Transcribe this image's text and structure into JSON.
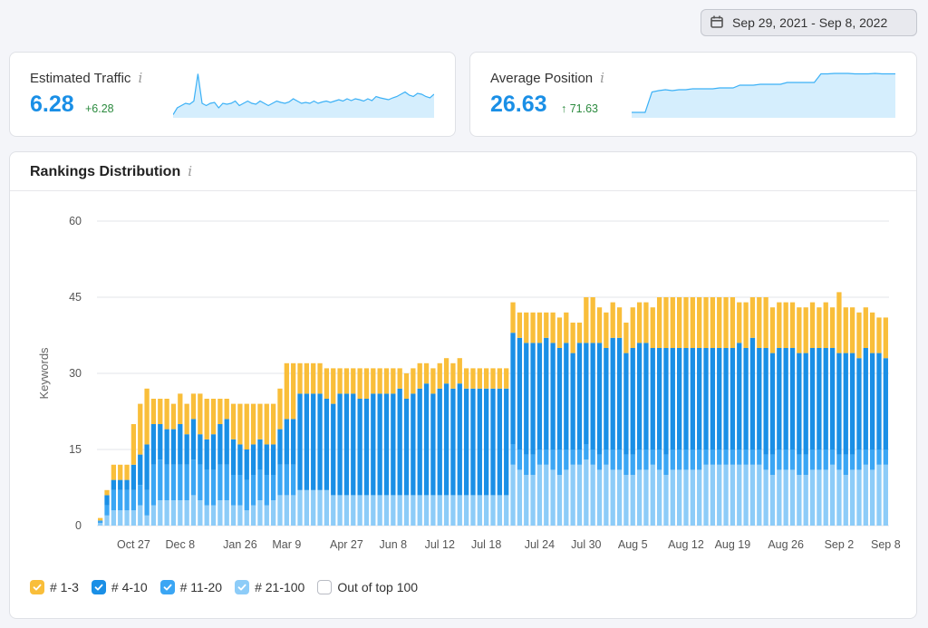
{
  "date_range": {
    "label": "Sep 29, 2021 - Sep 8, 2022",
    "icon": "calendar-icon"
  },
  "kpis": [
    {
      "title": "Estimated Traffic",
      "value": "6.28",
      "delta": "+6.28",
      "spark": [
        0.05,
        0.2,
        0.25,
        0.3,
        0.28,
        0.35,
        0.95,
        0.3,
        0.25,
        0.3,
        0.32,
        0.2,
        0.3,
        0.28,
        0.3,
        0.35,
        0.25,
        0.3,
        0.35,
        0.3,
        0.28,
        0.35,
        0.3,
        0.25,
        0.3,
        0.35,
        0.32,
        0.3,
        0.33,
        0.4,
        0.35,
        0.3,
        0.32,
        0.3,
        0.35,
        0.3,
        0.33,
        0.35,
        0.32,
        0.35,
        0.38,
        0.35,
        0.4,
        0.36,
        0.4,
        0.38,
        0.35,
        0.4,
        0.36,
        0.45,
        0.42,
        0.4,
        0.38,
        0.42,
        0.45,
        0.5,
        0.55,
        0.48,
        0.45,
        0.52,
        0.5,
        0.45,
        0.42,
        0.5
      ]
    },
    {
      "title": "Average Position",
      "value": "26.63",
      "delta": "↑ 71.63",
      "spark": [
        0.1,
        0.1,
        0.1,
        0.55,
        0.58,
        0.6,
        0.58,
        0.6,
        0.6,
        0.62,
        0.62,
        0.62,
        0.62,
        0.64,
        0.64,
        0.64,
        0.7,
        0.7,
        0.7,
        0.72,
        0.72,
        0.72,
        0.72,
        0.76,
        0.76,
        0.76,
        0.76,
        0.76,
        0.95,
        0.95,
        0.96,
        0.96,
        0.96,
        0.95,
        0.95,
        0.95,
        0.96,
        0.95,
        0.95,
        0.95
      ]
    }
  ],
  "rankings": {
    "title": "Rankings Distribution"
  },
  "colors": {
    "top3": "#f9be3a",
    "r4_10": "#1a8fe6",
    "r11_20": "#3ba6f4",
    "r21_100": "#8dccf8",
    "spark_line": "#3cb1f6",
    "spark_fill": "#d5eefd",
    "kpi_value": "#1a8fe6"
  },
  "legend": [
    {
      "label": "# 1-3",
      "color": "#f9be3a",
      "checked": true
    },
    {
      "label": "# 4-10",
      "color": "#1a8fe6",
      "checked": true
    },
    {
      "label": "# 11-20",
      "color": "#3ba6f4",
      "checked": true
    },
    {
      "label": "# 21-100",
      "color": "#8dccf8",
      "checked": true
    },
    {
      "label": "Out of top 100",
      "color": "#ffffff",
      "checked": false
    }
  ],
  "chart_data": {
    "type": "bar",
    "stacked": true,
    "ylabel": "Keywords",
    "ylim": [
      0,
      60
    ],
    "yticks": [
      0,
      15,
      30,
      45,
      60
    ],
    "xtick_labels": [
      "Oct 27",
      "Dec 8",
      "Jan 26",
      "Mar 9",
      "Apr 27",
      "Jun 8",
      "Jul 12",
      "Jul 18",
      "Jul 24",
      "Jul 30",
      "Aug 5",
      "Aug 12",
      "Aug 19",
      "Aug 26",
      "Sep 2",
      "Sep 8"
    ],
    "xtick_bar_index": [
      5,
      12,
      21,
      28,
      37,
      44,
      51,
      58,
      66,
      73,
      80,
      88,
      95,
      103,
      111,
      118
    ],
    "grid": true,
    "legend_position": "bottom-left",
    "series": [
      {
        "name": "# 21-100",
        "values": [
          0.5,
          2,
          3,
          3,
          3,
          3,
          4,
          2,
          4,
          5,
          5,
          5,
          5,
          5,
          6,
          5,
          4,
          4,
          5,
          5,
          4,
          4,
          3,
          4,
          5,
          4,
          5,
          6,
          6,
          6,
          7,
          7,
          7,
          7,
          7,
          6,
          6,
          6,
          6,
          6,
          6,
          6,
          6,
          6,
          6,
          6,
          6,
          6,
          6,
          6,
          6,
          6,
          6,
          6,
          6,
          6,
          6,
          6,
          6,
          6,
          6,
          6,
          12,
          11,
          10,
          10,
          12,
          12,
          11,
          10,
          11,
          12,
          12,
          13,
          12,
          11,
          12,
          11,
          11,
          10,
          10,
          11,
          11,
          12,
          11,
          10,
          11,
          11,
          11,
          11,
          11,
          12,
          12,
          12,
          12,
          12,
          12,
          12,
          12,
          12,
          11,
          10,
          11,
          11,
          11,
          10,
          10,
          11,
          11,
          11,
          12,
          11,
          10,
          11,
          11,
          12,
          11,
          12,
          12
        ]
      },
      {
        "name": "# 11-20",
        "values": [
          0.5,
          2,
          4,
          4,
          4,
          4,
          4,
          5,
          8,
          8,
          7,
          7,
          7,
          7,
          7,
          7,
          7,
          7,
          7,
          7,
          6,
          6,
          6,
          6,
          6,
          6,
          5,
          6,
          6,
          6,
          0,
          0,
          0,
          0,
          0,
          0,
          0,
          0,
          0,
          0,
          0,
          0,
          0,
          0,
          0,
          0,
          0,
          0,
          0,
          0,
          0,
          0,
          0,
          0,
          0,
          0,
          0,
          0,
          0,
          0,
          0,
          0,
          4,
          4,
          4,
          4,
          3,
          3,
          4,
          5,
          4,
          3,
          3,
          3,
          3,
          3,
          3,
          4,
          4,
          4,
          4,
          4,
          4,
          3,
          4,
          4,
          4,
          4,
          4,
          4,
          4,
          3,
          3,
          3,
          3,
          3,
          3,
          3,
          3,
          3,
          3,
          4,
          4,
          4,
          4,
          4,
          4,
          4,
          4,
          4,
          3,
          3,
          4,
          3,
          4,
          3,
          4,
          3,
          3
        ]
      },
      {
        "name": "# 4-10",
        "values": [
          0,
          2,
          2,
          2,
          2,
          5,
          6,
          9,
          8,
          7,
          7,
          7,
          8,
          6,
          8,
          6,
          6,
          7,
          8,
          9,
          7,
          6,
          6,
          6,
          6,
          6,
          6,
          7,
          9,
          9,
          19,
          19,
          19,
          19,
          18,
          18,
          20,
          20,
          20,
          19,
          19,
          20,
          20,
          20,
          20,
          21,
          19,
          20,
          21,
          22,
          20,
          21,
          22,
          21,
          22,
          21,
          21,
          21,
          21,
          21,
          21,
          21,
          22,
          22,
          22,
          22,
          21,
          22,
          21,
          20,
          21,
          19,
          21,
          20,
          21,
          22,
          20,
          22,
          22,
          20,
          21,
          21,
          21,
          20,
          20,
          21,
          20,
          20,
          20,
          20,
          20,
          20,
          20,
          20,
          20,
          20,
          21,
          20,
          22,
          20,
          21,
          20,
          20,
          20,
          20,
          20,
          20,
          20,
          20,
          20,
          20,
          20,
          20,
          20,
          18,
          20,
          19,
          19,
          18
        ]
      },
      {
        "name": "# 1-3",
        "values": [
          0.5,
          1,
          3,
          3,
          3,
          8,
          10,
          11,
          5,
          5,
          6,
          5,
          6,
          6,
          5,
          8,
          8,
          7,
          5,
          4,
          7,
          8,
          9,
          8,
          7,
          8,
          8,
          8,
          11,
          11,
          6,
          6,
          6,
          6,
          6,
          7,
          5,
          5,
          5,
          6,
          6,
          5,
          5,
          5,
          5,
          4,
          5,
          5,
          5,
          4,
          5,
          5,
          5,
          5,
          5,
          4,
          4,
          4,
          4,
          4,
          4,
          4,
          6,
          5,
          6,
          6,
          6,
          5,
          6,
          6,
          6,
          6,
          4,
          9,
          9,
          7,
          7,
          7,
          6,
          6,
          8,
          8,
          8,
          8,
          10,
          10,
          10,
          10,
          10,
          10,
          10,
          10,
          10,
          10,
          10,
          10,
          8,
          9,
          8,
          10,
          10,
          9,
          9,
          9,
          9,
          9,
          9,
          9,
          8,
          9,
          8,
          12,
          9,
          9,
          9,
          8,
          8,
          7,
          8
        ]
      }
    ]
  }
}
